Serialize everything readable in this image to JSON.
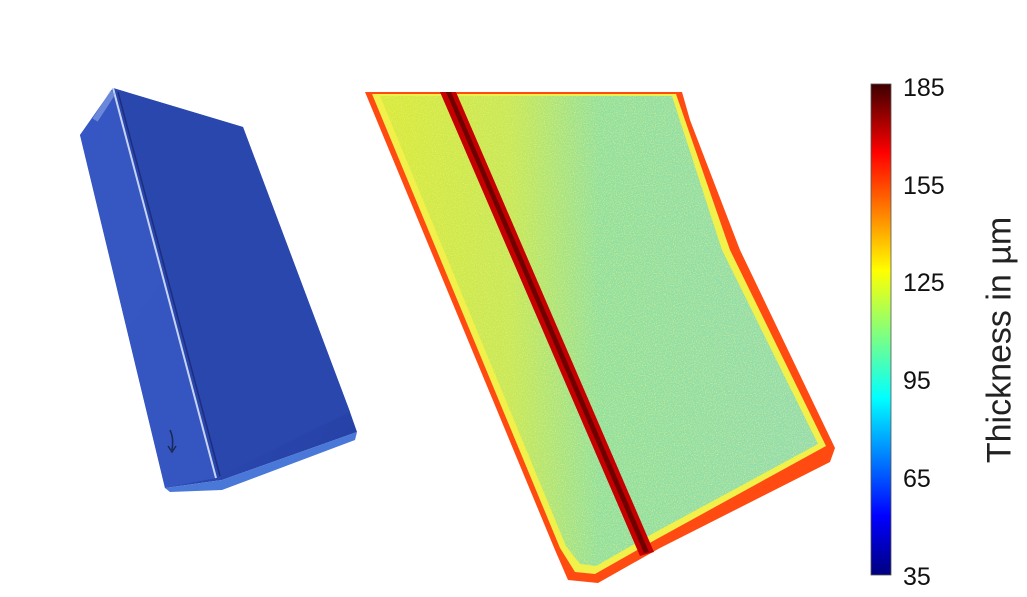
{
  "figure": {
    "photo": {
      "object_color": "#2f4fb8"
    },
    "thickness_map": {
      "colormap": "jet",
      "background_value_um": 115,
      "seam_value_um": 180,
      "edge_value_um": 165
    },
    "colorbar": {
      "label": "Thickness in µm",
      "min": 35,
      "max": 185,
      "ticks": [
        "185",
        "155",
        "125",
        "95",
        "65",
        "35"
      ],
      "colors": [
        "#3d0000",
        "#ff0000",
        "#ffff00",
        "#00ffff",
        "#0000ff",
        "#00007f"
      ]
    }
  }
}
